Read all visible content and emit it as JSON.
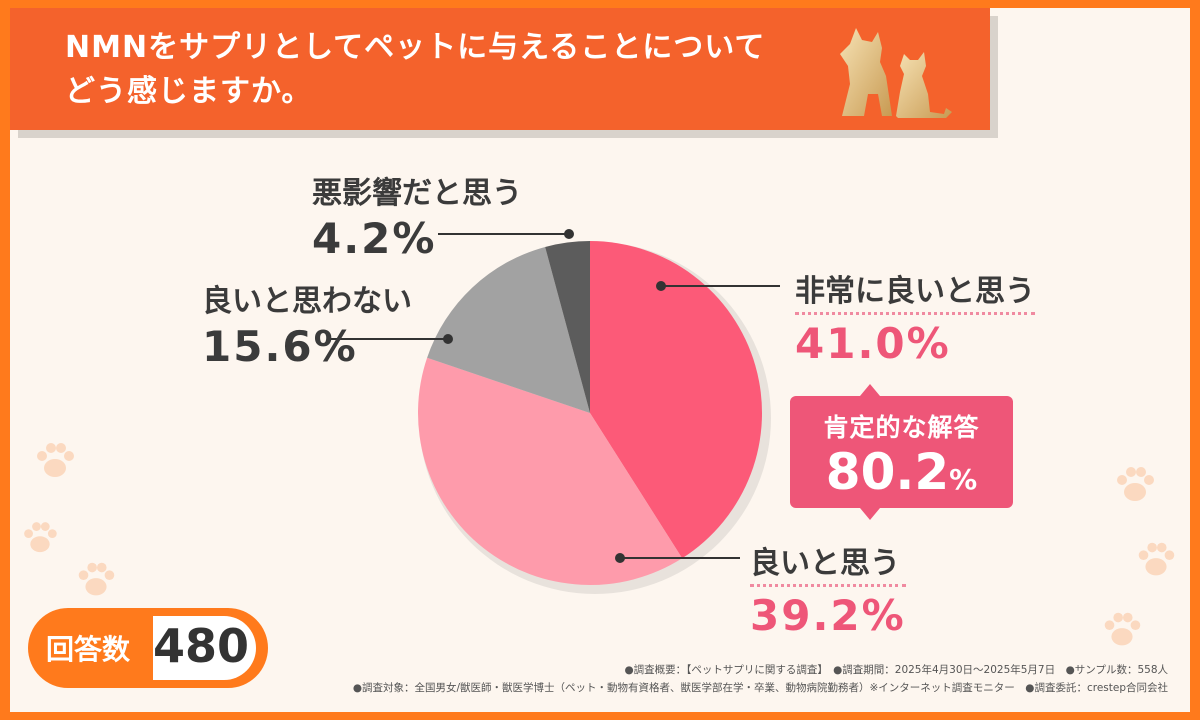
{
  "title": {
    "line1": "NMNをサプリとしてペットに与えることについて",
    "line2": "どう感じますか。"
  },
  "chart_data": {
    "type": "pie",
    "slices": [
      {
        "label": "非常に良いと思う",
        "value": 41.0,
        "display": "41.0%",
        "color": "#fc5a78"
      },
      {
        "label": "良いと思う",
        "value": 39.2,
        "display": "39.2%",
        "color": "#fe9bab"
      },
      {
        "label": "良いと思わない",
        "value": 15.6,
        "display": "15.6%",
        "color": "#a2a2a2"
      },
      {
        "label": "悪影響だと思う",
        "value": 4.2,
        "display": "4.2%",
        "color": "#5c5c5c"
      }
    ]
  },
  "callout": {
    "label": "肯定的な解答",
    "value": "80.2",
    "unit": "%"
  },
  "sample": {
    "label": "回答数",
    "value": "480"
  },
  "footer": {
    "line1": "●調査概要：【ペットサプリに関する調査】　●調査期間：2025年4月30日〜2025年5月7日　●サンプル数：558人",
    "line2": "●調査対象：全国男女/獣医師・獣医学博士（ペット・動物有資格者、獣医学部在学・卒業、動物病院勤務者）※インターネット調査モニター　●調査委託：crestep合同会社"
  },
  "colors": {
    "accent_orange": "#ff7a1c",
    "title_bar": "#f4622c",
    "pink_text": "#ee5678",
    "background": "#fdf6ef"
  },
  "icons": [
    "dog-cat-silhouette-icon",
    "paw-print-icon"
  ]
}
